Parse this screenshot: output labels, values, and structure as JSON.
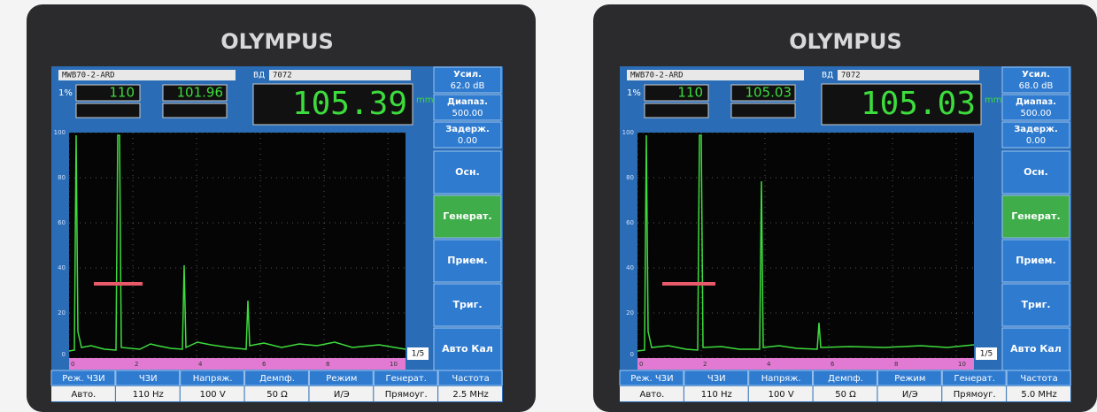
{
  "screens": [
    {
      "brand": "OLYMPUS",
      "file": "MWB70-2-ARD",
      "vd_label": "ВД",
      "vd": "7072",
      "gain_step": "1%",
      "ref_value": "110",
      "gate_a": "101.96",
      "reading": "105.39",
      "unit": "mm",
      "side": [
        {
          "label": "Усил.",
          "value": "62.0 dB"
        },
        {
          "label": "Диапаз.",
          "value": "500.00"
        },
        {
          "label": "Задерж.",
          "value": "0.00"
        }
      ],
      "menu": [
        "Осн.",
        "Генерат.",
        "Прием.",
        "Триг.",
        "Авто Кал"
      ],
      "y_labels": [
        "100",
        "80",
        "60",
        "40",
        "20",
        "0"
      ],
      "x_labels": [
        "0",
        "2",
        "4",
        "6",
        "8",
        "10"
      ],
      "page": "1/5",
      "params": [
        {
          "name": "Реж. ЧЗИ",
          "value": "Авто."
        },
        {
          "name": "ЧЗИ",
          "value": "110 Hz"
        },
        {
          "name": "Напряж.",
          "value": "100 V"
        },
        {
          "name": "Демпф.",
          "value": "50 Ω"
        },
        {
          "name": "Режим",
          "value": "И/Э"
        },
        {
          "name": "Генерат.",
          "value": "Прямоуг."
        },
        {
          "name": "Частота",
          "value": "2.5 MHz"
        }
      ]
    },
    {
      "brand": "OLYMPUS",
      "file": "MWB70-2-ARD",
      "vd_label": "ВД",
      "vd": "7072",
      "gain_step": "1%",
      "ref_value": "110",
      "gate_a": "105.03",
      "reading": "105.03",
      "unit": "mm",
      "side": [
        {
          "label": "Усил.",
          "value": "68.0 dB"
        },
        {
          "label": "Диапаз.",
          "value": "500.00"
        },
        {
          "label": "Задерж.",
          "value": "0.00"
        }
      ],
      "menu": [
        "Осн.",
        "Генерат.",
        "Прием.",
        "Триг.",
        "Авто Кал"
      ],
      "y_labels": [
        "100",
        "80",
        "60",
        "40",
        "20",
        "0"
      ],
      "x_labels": [
        "0",
        "2",
        "4",
        "6",
        "8",
        "10"
      ],
      "page": "1/5",
      "params": [
        {
          "name": "Реж. ЧЗИ",
          "value": "Авто."
        },
        {
          "name": "ЧЗИ",
          "value": "110 Hz"
        },
        {
          "name": "Напряж.",
          "value": "100 V"
        },
        {
          "name": "Демпф.",
          "value": "50 Ω"
        },
        {
          "name": "Режим",
          "value": "И/Э"
        },
        {
          "name": "Генерат.",
          "value": "Прямоуг."
        },
        {
          "name": "Частота",
          "value": "5.0 MHz"
        }
      ]
    }
  ]
}
